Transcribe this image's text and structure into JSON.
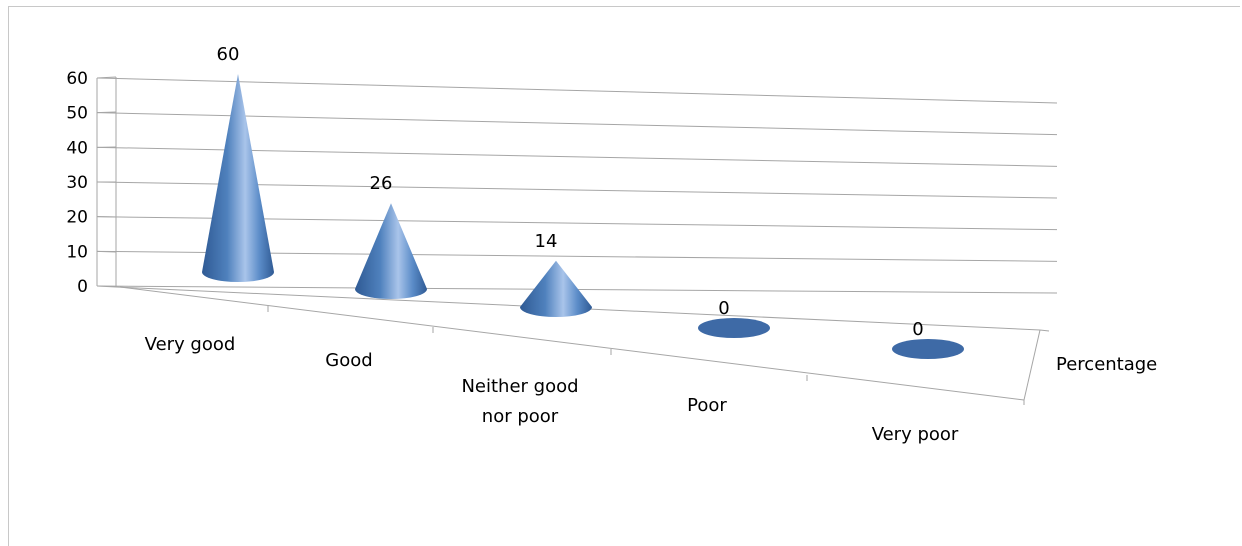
{
  "chart_data": {
    "type": "bar",
    "mark_shape": "3d-cone",
    "categories": [
      "Very good",
      "Good",
      "Neither good nor poor",
      "Poor",
      "Very poor"
    ],
    "category_label_lines": [
      [
        "Very good"
      ],
      [
        "Good"
      ],
      [
        "Neither good",
        "nor poor"
      ],
      [
        "Poor"
      ],
      [
        "Very poor"
      ]
    ],
    "series": [
      {
        "name": "Percentage",
        "values": [
          60,
          26,
          14,
          0,
          0
        ]
      }
    ],
    "data_labels": [
      "60",
      "26",
      "14",
      "0",
      "0"
    ],
    "yticks": [
      "0",
      "10",
      "20",
      "30",
      "40",
      "50",
      "60"
    ],
    "ylim": [
      0,
      60
    ],
    "grid": true,
    "title": "",
    "xlabel": "",
    "ylabel": "",
    "colors": {
      "cone": "#4f81bd",
      "cone_light": "#a9c4ea",
      "cone_dark": "#2f5a94",
      "grid": "#a6a6a6"
    }
  }
}
